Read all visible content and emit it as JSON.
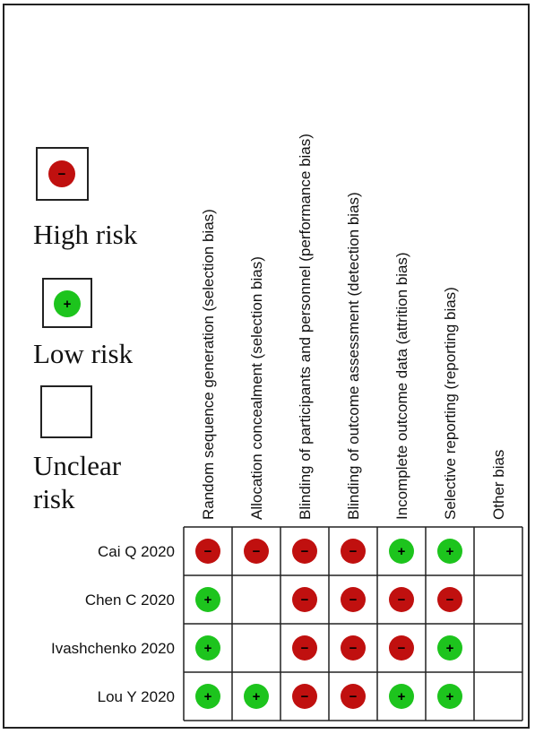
{
  "legend": {
    "high_risk": "High risk",
    "low_risk": "Low risk",
    "unclear_risk_line1": "Unclear",
    "unclear_risk_line2": "risk",
    "high_symbol": "−",
    "low_symbol": "+"
  },
  "colors": {
    "high": "#c0100f",
    "low": "#1dc41d",
    "grid": "#222222"
  },
  "chart_data": {
    "type": "table",
    "columns": [
      "Random sequence generation (selection bias)",
      "Allocation concealment (selection bias)",
      "Blinding of participants and personnel (performance bias)",
      "Blinding of outcome assessment (detection bias)",
      "Incomplete outcome data (attrition bias)",
      "Selective reporting (reporting bias)",
      "Other bias"
    ],
    "rows": [
      {
        "study": "Cai Q 2020",
        "ratings": [
          "high",
          "high",
          "high",
          "high",
          "low",
          "low",
          "unclear"
        ]
      },
      {
        "study": "Chen C 2020",
        "ratings": [
          "low",
          "unclear",
          "high",
          "high",
          "high",
          "high",
          "unclear"
        ]
      },
      {
        "study": "Ivashchenko 2020",
        "ratings": [
          "low",
          "unclear",
          "high",
          "high",
          "high",
          "low",
          "unclear"
        ]
      },
      {
        "study": "Lou Y 2020",
        "ratings": [
          "low",
          "low",
          "high",
          "high",
          "low",
          "low",
          "unclear"
        ]
      }
    ]
  }
}
